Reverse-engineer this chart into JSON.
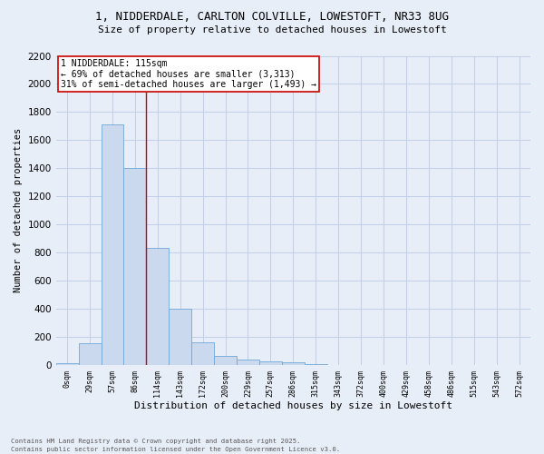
{
  "title_line1": "1, NIDDERDALE, CARLTON COLVILLE, LOWESTOFT, NR33 8UG",
  "title_line2": "Size of property relative to detached houses in Lowestoft",
  "xlabel": "Distribution of detached houses by size in Lowestoft",
  "ylabel": "Number of detached properties",
  "footer_line1": "Contains HM Land Registry data © Crown copyright and database right 2025.",
  "footer_line2": "Contains public sector information licensed under the Open Government Licence v3.0.",
  "categories": [
    "0sqm",
    "29sqm",
    "57sqm",
    "86sqm",
    "114sqm",
    "143sqm",
    "172sqm",
    "200sqm",
    "229sqm",
    "257sqm",
    "286sqm",
    "315sqm",
    "343sqm",
    "372sqm",
    "400sqm",
    "429sqm",
    "458sqm",
    "486sqm",
    "515sqm",
    "543sqm",
    "572sqm"
  ],
  "bar_values": [
    15,
    155,
    1710,
    1400,
    835,
    400,
    165,
    65,
    38,
    28,
    18,
    5,
    0,
    0,
    0,
    0,
    0,
    0,
    0,
    0,
    0
  ],
  "bar_color": "#cad9ee",
  "bar_edge_color": "#6fa8d8",
  "grid_color": "#c0cfe8",
  "bg_color": "#e8eef8",
  "ylim": [
    0,
    2200
  ],
  "yticks": [
    0,
    200,
    400,
    600,
    800,
    1000,
    1200,
    1400,
    1600,
    1800,
    2000,
    2200
  ],
  "property_line_x": 3.5,
  "annotation_text": "1 NIDDERDALE: 115sqm\n← 69% of detached houses are smaller (3,313)\n31% of semi-detached houses are larger (1,493) →",
  "annotation_box_color": "#ffffff",
  "annotation_box_edgecolor": "#cc0000",
  "annotation_fontsize": 7.0,
  "vline_color": "#cc0000"
}
